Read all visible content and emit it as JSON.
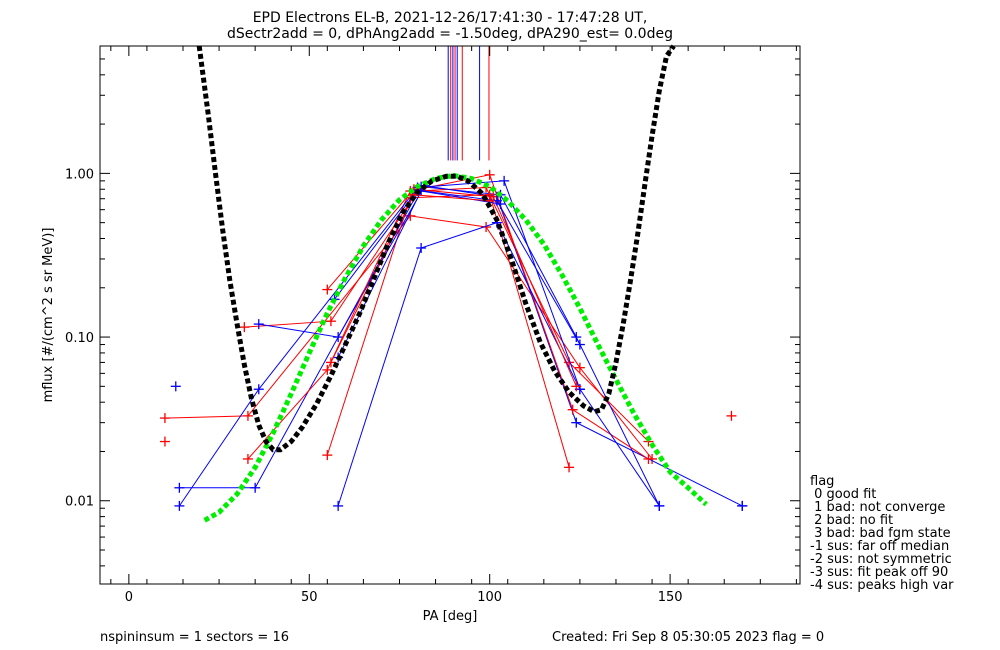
{
  "chart_data": {
    "type": "line",
    "title": "EPD Electrons EL-B, 2021-12-26/17:41:30 - 17:47:28 UT,",
    "subtitle": "dSectr2add = 0, dPhAng2add = -1.50deg, dPA290_est=   0.0deg",
    "xlabel": "PA [deg]",
    "ylabel": "mflux [#/(cm^2 s sr MeV)]",
    "xlim": [
      -8,
      186
    ],
    "ylim": [
      0.0031,
      6.0
    ],
    "yscale": "log",
    "xticks": [
      0,
      50,
      100,
      150
    ],
    "xtick_labels": [
      "0",
      "50",
      "100",
      "150"
    ],
    "yticks": [
      0.01,
      0.1,
      1.0
    ],
    "ytick_labels": [
      "0.01",
      "0.10",
      "1.00"
    ],
    "colors": {
      "red": "#ff0000",
      "blue": "#0000ff",
      "green": "#00ee00",
      "black": "#000000"
    },
    "series": [
      {
        "color": "red",
        "x": [
          10,
          33,
          78,
          99,
          125,
          145
        ],
        "y": [
          0.032,
          0.033,
          0.55,
          0.47,
          0.065,
          0.018
        ]
      },
      {
        "color": "blue",
        "x": [
          14,
          35,
          81,
          103,
          124,
          147
        ],
        "y": [
          0.012,
          0.012,
          0.83,
          0.74,
          0.1,
          0.0093
        ]
      },
      {
        "color": "red",
        "x": [
          32,
          56,
          80,
          99,
          122,
          144
        ],
        "y": [
          0.115,
          0.125,
          0.78,
          0.82,
          0.07,
          0.023
        ]
      },
      {
        "color": "blue",
        "x": [
          36,
          58,
          82,
          102,
          124,
          170
        ],
        "y": [
          0.12,
          0.1,
          0.84,
          0.72,
          0.03,
          0.0093
        ]
      },
      {
        "color": "red",
        "x": [
          33,
          55,
          78,
          100,
          123,
          144
        ],
        "y": [
          0.018,
          0.063,
          0.78,
          0.98,
          0.036,
          0.018
        ]
      },
      {
        "color": "blue",
        "x": [
          14,
          36,
          80,
          104,
          125,
          147
        ],
        "y": [
          0.0093,
          0.048,
          0.82,
          0.9,
          0.048,
          0.0093
        ]
      },
      {
        "color": "red",
        "x": [
          55,
          78,
          100,
          122
        ],
        "y": [
          0.019,
          0.71,
          0.74,
          0.016
        ]
      },
      {
        "color": "blue",
        "x": [
          58,
          81,
          102,
          125
        ],
        "y": [
          0.0093,
          0.35,
          0.5,
          0.048
        ]
      },
      {
        "color": "red",
        "x": [
          55,
          79,
          101,
          124
        ],
        "y": [
          0.195,
          0.8,
          0.72,
          0.05
        ]
      },
      {
        "color": "blue",
        "x": [
          57,
          80,
          102,
          125
        ],
        "y": [
          0.17,
          0.79,
          0.68,
          0.09
        ]
      },
      {
        "color": "blue",
        "x": [
          58,
          81,
          103
        ],
        "y": [
          0.075,
          0.78,
          0.65
        ]
      },
      {
        "color": "red",
        "x": [
          56,
          79,
          100
        ],
        "y": [
          0.07,
          0.74,
          0.68
        ]
      }
    ],
    "markers": [
      {
        "color": "red",
        "x": 10,
        "y": 0.023
      },
      {
        "color": "blue",
        "x": 13,
        "y": 0.05
      },
      {
        "color": "red",
        "x": 167,
        "y": 0.033
      },
      {
        "color": "blue",
        "x": 170,
        "y": 0.0093
      }
    ],
    "vlines": [
      {
        "color": "blue",
        "x": 88.5
      },
      {
        "color": "red",
        "x": 89.2
      },
      {
        "color": "blue",
        "x": 89.8
      },
      {
        "color": "red",
        "x": 90.4
      },
      {
        "color": "blue",
        "x": 91.0
      },
      {
        "color": "red",
        "x": 92.4
      },
      {
        "color": "blue",
        "x": 97.2
      },
      {
        "color": "red",
        "x": 99.8
      }
    ],
    "vline_ymin": 1.2,
    "fit_black": {
      "x": [
        19.5,
        22,
        24,
        26,
        28,
        30,
        32,
        34,
        36,
        38,
        40,
        42,
        45,
        48,
        52,
        56,
        60,
        64,
        68,
        72,
        76,
        80,
        84,
        88,
        91,
        94,
        98,
        102,
        106,
        110,
        114,
        118,
        122,
        126,
        129,
        131,
        133,
        135,
        137,
        139,
        141,
        143,
        145,
        147,
        149,
        151
      ],
      "y": [
        6.0,
        2.3,
        1.0,
        0.45,
        0.22,
        0.12,
        0.068,
        0.042,
        0.029,
        0.023,
        0.0205,
        0.0205,
        0.023,
        0.028,
        0.039,
        0.058,
        0.09,
        0.14,
        0.23,
        0.38,
        0.58,
        0.77,
        0.9,
        0.96,
        0.96,
        0.9,
        0.75,
        0.52,
        0.3,
        0.16,
        0.093,
        0.062,
        0.046,
        0.038,
        0.035,
        0.036,
        0.045,
        0.07,
        0.12,
        0.22,
        0.42,
        0.85,
        1.7,
        3.2,
        5.2,
        6.0
      ]
    },
    "fit_green": {
      "x": [
        21,
        25,
        30,
        35,
        40,
        45,
        50,
        55,
        60,
        65,
        70,
        75,
        80,
        85,
        90,
        95,
        100,
        105,
        110,
        115,
        120,
        125,
        130,
        135,
        140,
        145,
        150,
        155,
        160
      ],
      "y": [
        0.0076,
        0.0085,
        0.011,
        0.016,
        0.026,
        0.045,
        0.08,
        0.14,
        0.23,
        0.36,
        0.52,
        0.69,
        0.83,
        0.93,
        0.97,
        0.93,
        0.83,
        0.68,
        0.52,
        0.37,
        0.24,
        0.15,
        0.09,
        0.055,
        0.034,
        0.022,
        0.015,
        0.012,
        0.0095
      ]
    }
  },
  "legend": {
    "title": "flag",
    "items": [
      " 0 good fit",
      " 1 bad: not converge",
      " 2 bad: no fit",
      " 3 bad: bad fgm state",
      "-1 sus: far off median",
      "-2 sus: not symmetric",
      "-3 sus: fit peak off 90",
      "-4 sus: peaks high var"
    ]
  },
  "footer": {
    "left": "nspininsum =  1  sectors = 16",
    "right": "Created: Fri Sep  8 05:30:05 2023   flag = 0"
  }
}
